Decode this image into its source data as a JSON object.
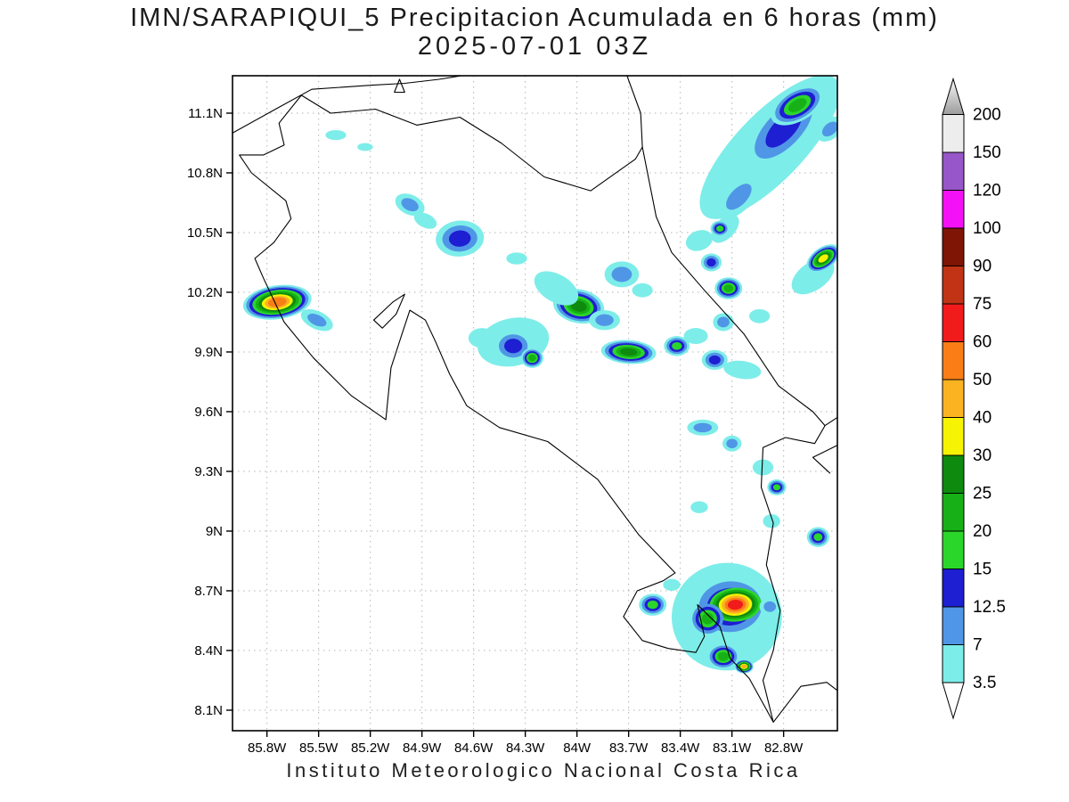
{
  "caption": "Instituto Meteorologico Nacional Costa Rica",
  "chart_data": {
    "type": "heatmap",
    "title": "IMN/SARAPIQUI_5 Precipitacion Acumulada en 6 horas (mm)",
    "subtitle": "2025-07-01 03Z",
    "units": "mm",
    "grid": "dotted",
    "legend_position": "right",
    "lon_range": [
      -86.0,
      -82.49
    ],
    "lat_range": [
      8.0,
      11.29
    ],
    "lon_ticks": [
      -85.8,
      -85.5,
      -85.2,
      -84.9,
      -84.6,
      -84.3,
      -84.0,
      -83.7,
      -83.4,
      -83.1,
      -82.8
    ],
    "lat_ticks": [
      11.1,
      10.8,
      10.5,
      10.2,
      9.9,
      9.6,
      9.3,
      9.0,
      8.7,
      8.4,
      8.1
    ],
    "xtick_labels": [
      "85.8W",
      "85.5W",
      "85.2W",
      "84.9W",
      "84.6W",
      "84.3W",
      "84W",
      "83.7W",
      "83.4W",
      "83.1W",
      "82.8W"
    ],
    "ytick_labels": [
      "11.1N",
      "10.8N",
      "10.5N",
      "10.2N",
      "9.9N",
      "9.6N",
      "9.3N",
      "9N",
      "8.7N",
      "8.4N",
      "8.1N"
    ],
    "colorbar": {
      "levels": [
        3.5,
        7,
        12.5,
        15,
        20,
        25,
        30,
        40,
        50,
        60,
        75,
        90,
        100,
        120,
        150,
        200
      ],
      "level_labels": [
        "3.5",
        "7",
        "12.5",
        "15",
        "20",
        "25",
        "30",
        "40",
        "50",
        "60",
        "75",
        "90",
        "100",
        "120",
        "150",
        "200"
      ],
      "band_colors": [
        "#7DEDE9",
        "#5096E6",
        "#1E1ED2",
        "#2BD62B",
        "#17B117",
        "#0E8B0E",
        "#F7F304",
        "#FCB321",
        "#F97E16",
        "#F21B1B",
        "#C03415",
        "#7E1505",
        "#F511F5",
        "#9757C8",
        "#EDEDED"
      ],
      "over_color": "#9C9C9C",
      "under_color": "#FFFFFF"
    },
    "precipitation_cells": [
      {
        "lon": -82.88,
        "lat": 10.93,
        "mm": 5,
        "rx": 0.55,
        "ry": 0.17,
        "rot": 46
      },
      {
        "lon": -82.8,
        "lat": 11.02,
        "mm": 13,
        "rx": 0.3,
        "ry": 0.12,
        "rot": 46
      },
      {
        "lon": -82.72,
        "lat": 11.14,
        "mm": 22,
        "rx": 0.17,
        "ry": 0.08,
        "rot": 30
      },
      {
        "lon": -83.06,
        "lat": 10.68,
        "mm": 10,
        "rx": 0.16,
        "ry": 0.07,
        "rot": 46
      },
      {
        "lon": -83.14,
        "lat": 10.52,
        "mm": 5,
        "rx": 0.1,
        "ry": 0.05,
        "rot": 46
      },
      {
        "lon": -82.53,
        "lat": 11.02,
        "mm": 10,
        "rx": 0.09,
        "ry": 0.05,
        "rot": 40
      },
      {
        "lon": -85.4,
        "lat": 10.99,
        "mm": 5,
        "rx": 0.06,
        "ry": 0.025,
        "rot": 0
      },
      {
        "lon": -85.23,
        "lat": 10.93,
        "mm": 5,
        "rx": 0.045,
        "ry": 0.02,
        "rot": 0
      },
      {
        "lon": -84.97,
        "lat": 10.64,
        "mm": 10,
        "rx": 0.09,
        "ry": 0.05,
        "rot": -25
      },
      {
        "lon": -84.88,
        "lat": 10.56,
        "mm": 5,
        "rx": 0.07,
        "ry": 0.035,
        "rot": -25
      },
      {
        "lon": -84.68,
        "lat": 10.47,
        "mm": 13,
        "rx": 0.14,
        "ry": 0.09,
        "rot": 5
      },
      {
        "lon": -84.35,
        "lat": 10.37,
        "mm": 5,
        "rx": 0.06,
        "ry": 0.03,
        "rot": 0
      },
      {
        "lon": -85.74,
        "lat": 10.15,
        "mm": 55,
        "rx": 0.2,
        "ry": 0.085,
        "rot": 8
      },
      {
        "lon": -85.51,
        "lat": 10.06,
        "mm": 10,
        "rx": 0.1,
        "ry": 0.045,
        "rot": -25
      },
      {
        "lon": -84.12,
        "lat": 10.22,
        "mm": 5,
        "rx": 0.14,
        "ry": 0.07,
        "rot": -30
      },
      {
        "lon": -83.99,
        "lat": 10.13,
        "mm": 27,
        "rx": 0.15,
        "ry": 0.085,
        "rot": -12
      },
      {
        "lon": -83.84,
        "lat": 10.06,
        "mm": 10,
        "rx": 0.09,
        "ry": 0.05,
        "rot": 0
      },
      {
        "lon": -83.74,
        "lat": 10.29,
        "mm": 10,
        "rx": 0.1,
        "ry": 0.065,
        "rot": 0
      },
      {
        "lon": -83.62,
        "lat": 10.21,
        "mm": 5,
        "rx": 0.06,
        "ry": 0.035,
        "rot": 0
      },
      {
        "lon": -83.12,
        "lat": 10.22,
        "mm": 22,
        "rx": 0.08,
        "ry": 0.055,
        "rot": 0
      },
      {
        "lon": -83.22,
        "lat": 10.35,
        "mm": 13,
        "rx": 0.06,
        "ry": 0.045,
        "rot": 0
      },
      {
        "lon": -83.29,
        "lat": 10.46,
        "mm": 5,
        "rx": 0.08,
        "ry": 0.05,
        "rot": 20
      },
      {
        "lon": -83.17,
        "lat": 10.52,
        "mm": 17,
        "rx": 0.055,
        "ry": 0.04,
        "rot": 0
      },
      {
        "lon": -82.57,
        "lat": 10.37,
        "mm": 35,
        "rx": 0.11,
        "ry": 0.055,
        "rot": 35
      },
      {
        "lon": -82.63,
        "lat": 10.28,
        "mm": 5,
        "rx": 0.14,
        "ry": 0.07,
        "rot": 35
      },
      {
        "lon": -84.37,
        "lat": 9.95,
        "mm": 5,
        "rx": 0.21,
        "ry": 0.12,
        "rot": 12
      },
      {
        "lon": -84.37,
        "lat": 9.93,
        "mm": 13,
        "rx": 0.115,
        "ry": 0.08,
        "rot": 0
      },
      {
        "lon": -84.26,
        "lat": 9.87,
        "mm": 22,
        "rx": 0.065,
        "ry": 0.05,
        "rot": 0
      },
      {
        "lon": -84.55,
        "lat": 9.97,
        "mm": 5,
        "rx": 0.08,
        "ry": 0.05,
        "rot": 0
      },
      {
        "lon": -83.7,
        "lat": 9.9,
        "mm": 27,
        "rx": 0.16,
        "ry": 0.06,
        "rot": -4
      },
      {
        "lon": -83.42,
        "lat": 9.93,
        "mm": 17,
        "rx": 0.075,
        "ry": 0.05,
        "rot": 0
      },
      {
        "lon": -83.31,
        "lat": 9.98,
        "mm": 5,
        "rx": 0.07,
        "ry": 0.04,
        "rot": 0
      },
      {
        "lon": -83.2,
        "lat": 9.86,
        "mm": 13,
        "rx": 0.075,
        "ry": 0.05,
        "rot": 0
      },
      {
        "lon": -83.04,
        "lat": 9.81,
        "mm": 5,
        "rx": 0.11,
        "ry": 0.045,
        "rot": -8
      },
      {
        "lon": -83.15,
        "lat": 10.05,
        "mm": 10,
        "rx": 0.06,
        "ry": 0.045,
        "rot": 0
      },
      {
        "lon": -82.94,
        "lat": 10.08,
        "mm": 5,
        "rx": 0.06,
        "ry": 0.035,
        "rot": 0
      },
      {
        "lon": -83.27,
        "lat": 9.52,
        "mm": 10,
        "rx": 0.09,
        "ry": 0.04,
        "rot": 0
      },
      {
        "lon": -83.1,
        "lat": 9.44,
        "mm": 10,
        "rx": 0.055,
        "ry": 0.04,
        "rot": 0
      },
      {
        "lon": -82.92,
        "lat": 9.32,
        "mm": 5,
        "rx": 0.06,
        "ry": 0.04,
        "rot": 0
      },
      {
        "lon": -82.84,
        "lat": 9.22,
        "mm": 17,
        "rx": 0.055,
        "ry": 0.04,
        "rot": 0
      },
      {
        "lon": -83.29,
        "lat": 9.12,
        "mm": 5,
        "rx": 0.05,
        "ry": 0.03,
        "rot": 0
      },
      {
        "lon": -82.6,
        "lat": 8.97,
        "mm": 17,
        "rx": 0.065,
        "ry": 0.05,
        "rot": 0
      },
      {
        "lon": -83.56,
        "lat": 8.63,
        "mm": 17,
        "rx": 0.08,
        "ry": 0.055,
        "rot": 0
      },
      {
        "lon": -83.13,
        "lat": 8.57,
        "mm": 5,
        "rx": 0.32,
        "ry": 0.27,
        "rot": 8
      },
      {
        "lon": -83.11,
        "lat": 8.62,
        "mm": 18,
        "rx": 0.23,
        "ry": 0.16,
        "rot": 4
      },
      {
        "lon": -83.08,
        "lat": 8.63,
        "mm": 70,
        "min_mm": 15,
        "rx": 0.15,
        "ry": 0.085,
        "rot": 4
      },
      {
        "lon": -83.24,
        "lat": 8.56,
        "mm": 22,
        "min_mm": 7,
        "rx": 0.09,
        "ry": 0.075,
        "rot": 0
      },
      {
        "lon": -83.15,
        "lat": 8.37,
        "mm": 22,
        "rx": 0.095,
        "ry": 0.065,
        "rot": 0
      },
      {
        "lon": -83.03,
        "lat": 8.32,
        "mm": 45,
        "rx": 0.055,
        "ry": 0.035,
        "rot": 0
      },
      {
        "lon": -82.88,
        "lat": 8.62,
        "mm": 10,
        "rx": 0.06,
        "ry": 0.045,
        "rot": 0
      },
      {
        "lon": -83.45,
        "lat": 8.73,
        "mm": 5,
        "rx": 0.05,
        "ry": 0.03,
        "rot": 0
      },
      {
        "lon": -82.87,
        "lat": 9.05,
        "mm": 5,
        "rx": 0.05,
        "ry": 0.035,
        "rot": 0
      }
    ],
    "map_outlines": [
      {
        "name": "costa-rica",
        "closed": true,
        "points": [
          [
            -85.73,
            11.05
          ],
          [
            -85.6,
            11.19
          ],
          [
            -85.43,
            11.1
          ],
          [
            -85.17,
            11.12
          ],
          [
            -84.93,
            11.04
          ],
          [
            -84.68,
            11.08
          ],
          [
            -84.44,
            10.95
          ],
          [
            -84.19,
            10.78
          ],
          [
            -83.92,
            10.71
          ],
          [
            -83.66,
            10.87
          ],
          [
            -83.62,
            10.93
          ],
          [
            -83.54,
            10.58
          ],
          [
            -83.45,
            10.4
          ],
          [
            -83.26,
            10.21
          ],
          [
            -83.03,
            9.99
          ],
          [
            -82.83,
            9.73
          ],
          [
            -82.63,
            9.6
          ],
          [
            -82.56,
            9.53
          ],
          [
            -82.62,
            9.44
          ],
          [
            -82.79,
            9.47
          ],
          [
            -82.92,
            9.42
          ],
          [
            -82.93,
            9.22
          ],
          [
            -82.86,
            9.04
          ],
          [
            -82.9,
            8.83
          ],
          [
            -82.82,
            8.6
          ],
          [
            -82.86,
            8.4
          ],
          [
            -82.92,
            8.25
          ],
          [
            -82.86,
            8.04
          ],
          [
            -83.0,
            8.26
          ],
          [
            -83.11,
            8.36
          ],
          [
            -83.17,
            8.52
          ],
          [
            -83.3,
            8.63
          ],
          [
            -83.26,
            8.47
          ],
          [
            -83.31,
            8.39
          ],
          [
            -83.47,
            8.41
          ],
          [
            -83.62,
            8.45
          ],
          [
            -83.73,
            8.57
          ],
          [
            -83.65,
            8.7
          ],
          [
            -83.5,
            8.75
          ],
          [
            -83.43,
            8.79
          ],
          [
            -83.64,
            8.98
          ],
          [
            -83.88,
            9.26
          ],
          [
            -84.17,
            9.45
          ],
          [
            -84.45,
            9.52
          ],
          [
            -84.64,
            9.63
          ],
          [
            -84.74,
            9.79
          ],
          [
            -84.82,
            9.95
          ],
          [
            -84.88,
            10.06
          ],
          [
            -84.97,
            10.11
          ],
          [
            -85.02,
            9.98
          ],
          [
            -85.08,
            9.82
          ],
          [
            -85.11,
            9.56
          ],
          [
            -85.31,
            9.68
          ],
          [
            -85.53,
            9.87
          ],
          [
            -85.7,
            10.05
          ],
          [
            -85.82,
            10.27
          ],
          [
            -85.87,
            10.37
          ],
          [
            -85.76,
            10.45
          ],
          [
            -85.66,
            10.57
          ],
          [
            -85.69,
            10.66
          ],
          [
            -85.89,
            10.8
          ],
          [
            -85.96,
            10.89
          ],
          [
            -85.82,
            10.89
          ],
          [
            -85.7,
            10.94
          ]
        ]
      },
      {
        "name": "lake-nicaragua-shore",
        "closed": false,
        "points": [
          [
            -86.0,
            11.0
          ],
          [
            -85.75,
            11.12
          ],
          [
            -85.54,
            11.22
          ],
          [
            -85.2,
            11.24
          ],
          [
            -85.0,
            11.25
          ],
          [
            -84.8,
            11.27
          ],
          [
            -84.66,
            11.29
          ]
        ]
      },
      {
        "name": "lake-island-triangle",
        "closed": true,
        "points": [
          [
            -85.06,
            11.205
          ],
          [
            -85.0,
            11.205
          ],
          [
            -85.03,
            11.27
          ]
        ]
      },
      {
        "name": "nicaragua-caribbean-coast",
        "closed": false,
        "points": [
          [
            -83.62,
            10.93
          ],
          [
            -83.63,
            11.1
          ],
          [
            -83.71,
            11.29
          ]
        ]
      },
      {
        "name": "chira-island",
        "closed": true,
        "points": [
          [
            -85.18,
            10.06
          ],
          [
            -85.07,
            10.15
          ],
          [
            -85.0,
            10.19
          ],
          [
            -85.05,
            10.09
          ],
          [
            -85.13,
            10.02
          ]
        ]
      },
      {
        "name": "panama-caribbean-coast",
        "closed": false,
        "points": [
          [
            -82.56,
            9.53
          ],
          [
            -82.49,
            9.57
          ]
        ]
      },
      {
        "name": "panama-lagoon",
        "closed": false,
        "points": [
          [
            -82.49,
            9.43
          ],
          [
            -82.63,
            9.37
          ],
          [
            -82.53,
            9.29
          ]
        ]
      },
      {
        "name": "panama-pacific-coast",
        "closed": false,
        "points": [
          [
            -82.86,
            8.04
          ],
          [
            -82.7,
            8.22
          ],
          [
            -82.55,
            8.24
          ],
          [
            -82.49,
            8.2
          ]
        ]
      }
    ]
  }
}
